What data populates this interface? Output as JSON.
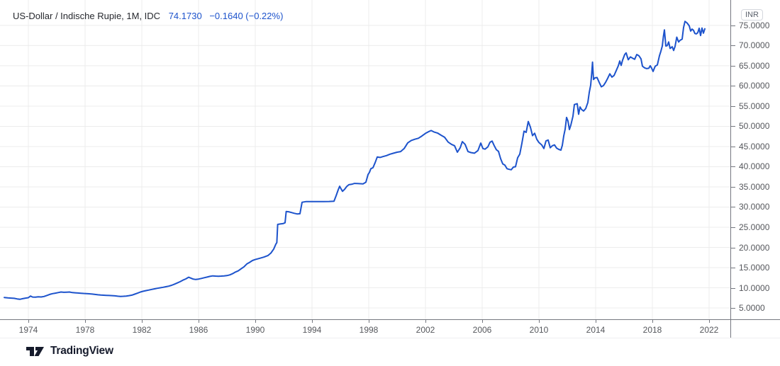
{
  "header": {
    "title": "US-Dollar / Indische Rupie, 1M, IDC",
    "price": "74.1730",
    "change": "−0.1640 (−0.22%)"
  },
  "price_scale": {
    "currency_badge": "INR",
    "ticks": [
      {
        "v": 75,
        "label": "75.0000"
      },
      {
        "v": 70,
        "label": "70.0000"
      },
      {
        "v": 65,
        "label": "65.0000"
      },
      {
        "v": 60,
        "label": "60.0000"
      },
      {
        "v": 55,
        "label": "55.0000"
      },
      {
        "v": 50,
        "label": "50.0000"
      },
      {
        "v": 45,
        "label": "45.0000"
      },
      {
        "v": 40,
        "label": "40.0000"
      },
      {
        "v": 35,
        "label": "35.0000"
      },
      {
        "v": 30,
        "label": "30.0000"
      },
      {
        "v": 25,
        "label": "25.0000"
      },
      {
        "v": 20,
        "label": "20.0000"
      },
      {
        "v": 15,
        "label": "15.0000"
      },
      {
        "v": 10,
        "label": "10.0000"
      },
      {
        "v": 5,
        "label": "5.0000"
      }
    ]
  },
  "time_scale": {
    "ticks": [
      {
        "v": 1974,
        "label": "1974"
      },
      {
        "v": 1978,
        "label": "1978"
      },
      {
        "v": 1982,
        "label": "1982"
      },
      {
        "v": 1986,
        "label": "1986"
      },
      {
        "v": 1990,
        "label": "1990"
      },
      {
        "v": 1994,
        "label": "1994"
      },
      {
        "v": 1998,
        "label": "1998"
      },
      {
        "v": 2002,
        "label": "2002"
      },
      {
        "v": 2006,
        "label": "2006"
      },
      {
        "v": 2010,
        "label": "2010"
      },
      {
        "v": 2014,
        "label": "2014"
      },
      {
        "v": 2018,
        "label": "2018"
      },
      {
        "v": 2022,
        "label": "2022"
      }
    ]
  },
  "footer": {
    "brand": "TradingView"
  },
  "colors": {
    "line": "#1d53cc",
    "quote_text": "#1d53cc",
    "grid": "#ececec",
    "axis_line": "#74777f",
    "axis_text": "#55575c",
    "title_text": "#26282e",
    "brand": "#161b2c"
  },
  "chart_data": {
    "type": "line",
    "title": "US-Dollar / Indische Rupie, 1M, IDC",
    "ylabel": "INR",
    "last_price": 74.173,
    "change": -0.164,
    "change_pct": -0.22,
    "grid": true,
    "legend_position": "top-left",
    "axes": {
      "x": {
        "range": [
          1972,
          2023.5
        ]
      },
      "y": {
        "range": [
          2.2,
          81.3
        ]
      }
    },
    "points": [
      [
        1972.3,
        7.6
      ],
      [
        1972.55,
        7.5
      ],
      [
        1972.8,
        7.45
      ],
      [
        1973.0,
        7.4
      ],
      [
        1973.2,
        7.25
      ],
      [
        1973.4,
        7.15
      ],
      [
        1973.6,
        7.3
      ],
      [
        1973.8,
        7.45
      ],
      [
        1974.0,
        7.55
      ],
      [
        1974.15,
        7.95
      ],
      [
        1974.3,
        7.7
      ],
      [
        1974.5,
        7.68
      ],
      [
        1974.7,
        7.78
      ],
      [
        1974.9,
        7.72
      ],
      [
        1975.1,
        7.85
      ],
      [
        1975.3,
        8.1
      ],
      [
        1975.5,
        8.35
      ],
      [
        1975.7,
        8.55
      ],
      [
        1975.9,
        8.68
      ],
      [
        1976.1,
        8.82
      ],
      [
        1976.3,
        8.95
      ],
      [
        1976.5,
        8.88
      ],
      [
        1976.7,
        8.92
      ],
      [
        1976.9,
        8.95
      ],
      [
        1977.1,
        8.82
      ],
      [
        1977.3,
        8.76
      ],
      [
        1977.5,
        8.7
      ],
      [
        1977.7,
        8.66
      ],
      [
        1977.9,
        8.6
      ],
      [
        1978.1,
        8.56
      ],
      [
        1978.3,
        8.52
      ],
      [
        1978.5,
        8.45
      ],
      [
        1978.7,
        8.36
      ],
      [
        1978.9,
        8.26
      ],
      [
        1979.1,
        8.2
      ],
      [
        1979.3,
        8.16
      ],
      [
        1979.5,
        8.12
      ],
      [
        1979.7,
        8.1
      ],
      [
        1979.9,
        8.06
      ],
      [
        1980.1,
        8.0
      ],
      [
        1980.3,
        7.92
      ],
      [
        1980.5,
        7.86
      ],
      [
        1980.7,
        7.9
      ],
      [
        1980.9,
        7.96
      ],
      [
        1981.1,
        8.05
      ],
      [
        1981.3,
        8.18
      ],
      [
        1981.5,
        8.42
      ],
      [
        1981.7,
        8.68
      ],
      [
        1981.9,
        8.96
      ],
      [
        1982.1,
        9.15
      ],
      [
        1982.3,
        9.3
      ],
      [
        1982.5,
        9.45
      ],
      [
        1982.7,
        9.6
      ],
      [
        1982.9,
        9.75
      ],
      [
        1983.1,
        9.88
      ],
      [
        1983.3,
        10.0
      ],
      [
        1983.5,
        10.12
      ],
      [
        1983.7,
        10.26
      ],
      [
        1983.9,
        10.4
      ],
      [
        1984.1,
        10.62
      ],
      [
        1984.3,
        10.9
      ],
      [
        1984.5,
        11.2
      ],
      [
        1984.7,
        11.52
      ],
      [
        1984.9,
        11.9
      ],
      [
        1985.1,
        12.2
      ],
      [
        1985.3,
        12.62
      ],
      [
        1985.45,
        12.4
      ],
      [
        1985.6,
        12.18
      ],
      [
        1985.8,
        12.06
      ],
      [
        1986.0,
        12.16
      ],
      [
        1986.2,
        12.32
      ],
      [
        1986.4,
        12.5
      ],
      [
        1986.6,
        12.66
      ],
      [
        1986.8,
        12.82
      ],
      [
        1987.0,
        12.95
      ],
      [
        1987.2,
        12.9
      ],
      [
        1987.4,
        12.86
      ],
      [
        1987.6,
        12.9
      ],
      [
        1987.8,
        12.96
      ],
      [
        1988.0,
        13.02
      ],
      [
        1988.2,
        13.2
      ],
      [
        1988.4,
        13.5
      ],
      [
        1988.6,
        13.9
      ],
      [
        1988.8,
        14.2
      ],
      [
        1989.0,
        14.7
      ],
      [
        1989.2,
        15.2
      ],
      [
        1989.4,
        15.9
      ],
      [
        1989.6,
        16.3
      ],
      [
        1989.8,
        16.75
      ],
      [
        1990.0,
        17.0
      ],
      [
        1990.3,
        17.3
      ],
      [
        1990.6,
        17.6
      ],
      [
        1990.9,
        18.0
      ],
      [
        1991.1,
        18.6
      ],
      [
        1991.3,
        19.6
      ],
      [
        1991.45,
        20.8
      ],
      [
        1991.52,
        21.2
      ],
      [
        1991.58,
        25.7
      ],
      [
        1991.75,
        25.8
      ],
      [
        1991.95,
        25.9
      ],
      [
        1992.1,
        26.1
      ],
      [
        1992.18,
        28.9
      ],
      [
        1992.35,
        28.85
      ],
      [
        1992.55,
        28.65
      ],
      [
        1992.75,
        28.45
      ],
      [
        1992.95,
        28.3
      ],
      [
        1993.15,
        28.35
      ],
      [
        1993.3,
        31.2
      ],
      [
        1993.6,
        31.37
      ],
      [
        1994.0,
        31.37
      ],
      [
        1994.4,
        31.37
      ],
      [
        1994.8,
        31.37
      ],
      [
        1995.2,
        31.38
      ],
      [
        1995.55,
        31.45
      ],
      [
        1995.7,
        32.8
      ],
      [
        1995.85,
        34.3
      ],
      [
        1995.95,
        35.15
      ],
      [
        1996.05,
        34.5
      ],
      [
        1996.15,
        33.9
      ],
      [
        1996.3,
        34.4
      ],
      [
        1996.45,
        35.1
      ],
      [
        1996.6,
        35.55
      ],
      [
        1996.8,
        35.65
      ],
      [
        1997.0,
        35.85
      ],
      [
        1997.2,
        35.82
      ],
      [
        1997.4,
        35.78
      ],
      [
        1997.6,
        35.75
      ],
      [
        1997.8,
        36.15
      ],
      [
        1997.95,
        38.05
      ],
      [
        1998.05,
        38.6
      ],
      [
        1998.15,
        39.5
      ],
      [
        1998.3,
        39.75
      ],
      [
        1998.45,
        41.0
      ],
      [
        1998.6,
        42.4
      ],
      [
        1998.8,
        42.3
      ],
      [
        1999.0,
        42.5
      ],
      [
        1999.25,
        42.75
      ],
      [
        1999.5,
        43.1
      ],
      [
        1999.75,
        43.35
      ],
      [
        2000.0,
        43.6
      ],
      [
        2000.25,
        43.75
      ],
      [
        2000.5,
        44.5
      ],
      [
        2000.75,
        45.9
      ],
      [
        2001.0,
        46.5
      ],
      [
        2001.25,
        46.8
      ],
      [
        2001.5,
        47.05
      ],
      [
        2001.75,
        47.6
      ],
      [
        2002.0,
        48.25
      ],
      [
        2002.2,
        48.65
      ],
      [
        2002.4,
        48.95
      ],
      [
        2002.6,
        48.6
      ],
      [
        2002.85,
        48.35
      ],
      [
        2003.1,
        47.8
      ],
      [
        2003.35,
        47.3
      ],
      [
        2003.6,
        46.1
      ],
      [
        2003.85,
        45.5
      ],
      [
        2004.05,
        45.2
      ],
      [
        2004.25,
        43.6
      ],
      [
        2004.45,
        44.7
      ],
      [
        2004.6,
        46.2
      ],
      [
        2004.8,
        45.5
      ],
      [
        2005.0,
        43.75
      ],
      [
        2005.2,
        43.5
      ],
      [
        2005.45,
        43.35
      ],
      [
        2005.7,
        44.0
      ],
      [
        2005.9,
        45.85
      ],
      [
        2006.05,
        44.5
      ],
      [
        2006.2,
        44.35
      ],
      [
        2006.4,
        44.9
      ],
      [
        2006.55,
        46.05
      ],
      [
        2006.7,
        46.35
      ],
      [
        2006.85,
        45.2
      ],
      [
        2007.0,
        44.2
      ],
      [
        2007.15,
        43.8
      ],
      [
        2007.3,
        42.0
      ],
      [
        2007.45,
        40.7
      ],
      [
        2007.6,
        40.4
      ],
      [
        2007.75,
        39.5
      ],
      [
        2007.9,
        39.35
      ],
      [
        2008.05,
        39.25
      ],
      [
        2008.2,
        39.9
      ],
      [
        2008.35,
        40.0
      ],
      [
        2008.5,
        42.2
      ],
      [
        2008.65,
        43.1
      ],
      [
        2008.8,
        45.8
      ],
      [
        2008.95,
        48.8
      ],
      [
        2009.1,
        48.5
      ],
      [
        2009.25,
        51.2
      ],
      [
        2009.4,
        49.8
      ],
      [
        2009.55,
        47.7
      ],
      [
        2009.7,
        48.3
      ],
      [
        2009.85,
        46.8
      ],
      [
        2010.0,
        46.0
      ],
      [
        2010.2,
        45.4
      ],
      [
        2010.35,
        44.5
      ],
      [
        2010.5,
        46.4
      ],
      [
        2010.65,
        46.6
      ],
      [
        2010.8,
        44.7
      ],
      [
        2010.95,
        45.2
      ],
      [
        2011.1,
        45.4
      ],
      [
        2011.25,
        44.6
      ],
      [
        2011.4,
        44.3
      ],
      [
        2011.55,
        44.1
      ],
      [
        2011.65,
        45.3
      ],
      [
        2011.75,
        47.6
      ],
      [
        2011.85,
        49.3
      ],
      [
        2011.95,
        52.2
      ],
      [
        2012.05,
        51.3
      ],
      [
        2012.15,
        49.2
      ],
      [
        2012.25,
        50.3
      ],
      [
        2012.4,
        52.5
      ],
      [
        2012.5,
        55.4
      ],
      [
        2012.6,
        55.5
      ],
      [
        2012.7,
        55.6
      ],
      [
        2012.8,
        53.0
      ],
      [
        2012.9,
        54.8
      ],
      [
        2013.0,
        54.2
      ],
      [
        2013.15,
        53.8
      ],
      [
        2013.3,
        54.4
      ],
      [
        2013.45,
        55.9
      ],
      [
        2013.55,
        58.4
      ],
      [
        2013.65,
        60.2
      ],
      [
        2013.72,
        63.0
      ],
      [
        2013.78,
        65.9
      ],
      [
        2013.85,
        61.6
      ],
      [
        2013.95,
        62.0
      ],
      [
        2014.1,
        62.1
      ],
      [
        2014.25,
        60.9
      ],
      [
        2014.4,
        59.8
      ],
      [
        2014.55,
        60.1
      ],
      [
        2014.7,
        60.9
      ],
      [
        2014.85,
        61.9
      ],
      [
        2015.0,
        63.0
      ],
      [
        2015.15,
        62.2
      ],
      [
        2015.3,
        62.6
      ],
      [
        2015.45,
        63.8
      ],
      [
        2015.6,
        65.0
      ],
      [
        2015.7,
        66.2
      ],
      [
        2015.8,
        65.1
      ],
      [
        2015.9,
        66.4
      ],
      [
        2016.05,
        67.8
      ],
      [
        2016.15,
        68.2
      ],
      [
        2016.3,
        66.5
      ],
      [
        2016.45,
        67.2
      ],
      [
        2016.6,
        66.9
      ],
      [
        2016.75,
        66.6
      ],
      [
        2016.9,
        67.8
      ],
      [
        2017.05,
        67.5
      ],
      [
        2017.2,
        66.7
      ],
      [
        2017.3,
        64.9
      ],
      [
        2017.45,
        64.5
      ],
      [
        2017.6,
        64.3
      ],
      [
        2017.75,
        64.4
      ],
      [
        2017.85,
        65.0
      ],
      [
        2017.95,
        64.4
      ],
      [
        2018.05,
        63.6
      ],
      [
        2018.2,
        64.9
      ],
      [
        2018.35,
        65.2
      ],
      [
        2018.5,
        67.5
      ],
      [
        2018.6,
        68.6
      ],
      [
        2018.7,
        69.9
      ],
      [
        2018.78,
        72.3
      ],
      [
        2018.85,
        73.9
      ],
      [
        2018.95,
        69.9
      ],
      [
        2019.05,
        70.0
      ],
      [
        2019.15,
        70.9
      ],
      [
        2019.25,
        69.3
      ],
      [
        2019.4,
        69.7
      ],
      [
        2019.5,
        68.8
      ],
      [
        2019.6,
        69.8
      ],
      [
        2019.72,
        72.1
      ],
      [
        2019.85,
        70.9
      ],
      [
        2019.95,
        71.3
      ],
      [
        2020.1,
        71.6
      ],
      [
        2020.2,
        74.5
      ],
      [
        2020.3,
        76.0
      ],
      [
        2020.45,
        75.6
      ],
      [
        2020.6,
        74.9
      ],
      [
        2020.7,
        73.6
      ],
      [
        2020.8,
        74.1
      ],
      [
        2020.9,
        73.8
      ],
      [
        2021.0,
        73.0
      ],
      [
        2021.1,
        72.9
      ],
      [
        2021.2,
        73.2
      ],
      [
        2021.3,
        74.3
      ],
      [
        2021.4,
        72.5
      ],
      [
        2021.5,
        74.35
      ],
      [
        2021.6,
        73.1
      ],
      [
        2021.7,
        74.17
      ]
    ]
  }
}
